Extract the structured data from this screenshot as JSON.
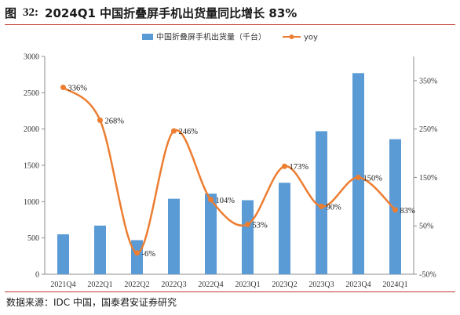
{
  "header": {
    "figure_label": "图",
    "figure_number": "32:",
    "title": "2024Q1 中国折叠屏手机出货量同比增长 83%"
  },
  "footer": {
    "source": "数据来源：IDC 中国，国泰君安证券研究"
  },
  "colors": {
    "bar": "#5b9bd5",
    "line": "#ed7d31",
    "rule": "#c0392b"
  },
  "chart_data": {
    "type": "bar",
    "categories": [
      "2021Q4",
      "2022Q1",
      "2022Q2",
      "2022Q3",
      "2022Q4",
      "2023Q1",
      "2023Q2",
      "2023Q3",
      "2023Q4",
      "2024Q1"
    ],
    "series": [
      {
        "name": "中国折叠屏手机出货量（千台）",
        "type": "bar",
        "axis": "left",
        "values": [
          550,
          670,
          470,
          1040,
          1110,
          1020,
          1260,
          1970,
          2770,
          1860
        ]
      },
      {
        "name": "yoy",
        "type": "line",
        "axis": "right",
        "smooth": true,
        "values": [
          336,
          268,
          -6,
          246,
          104,
          53,
          173,
          90,
          150,
          83
        ],
        "labels": [
          "336%",
          "268%",
          "-6%",
          "246%",
          "104%",
          "53%",
          "173%",
          "90%",
          "150%",
          "83%"
        ]
      }
    ],
    "ylim_left": [
      0,
      3000
    ],
    "yticks_left": [
      "0",
      "500",
      "1000",
      "1500",
      "2000",
      "2500",
      "3000"
    ],
    "ylim_right": [
      -50,
      400
    ],
    "yticks_right": [
      "-50%",
      "50%",
      "150%",
      "250%",
      "350%"
    ],
    "legend_position": "top",
    "grid": false
  }
}
